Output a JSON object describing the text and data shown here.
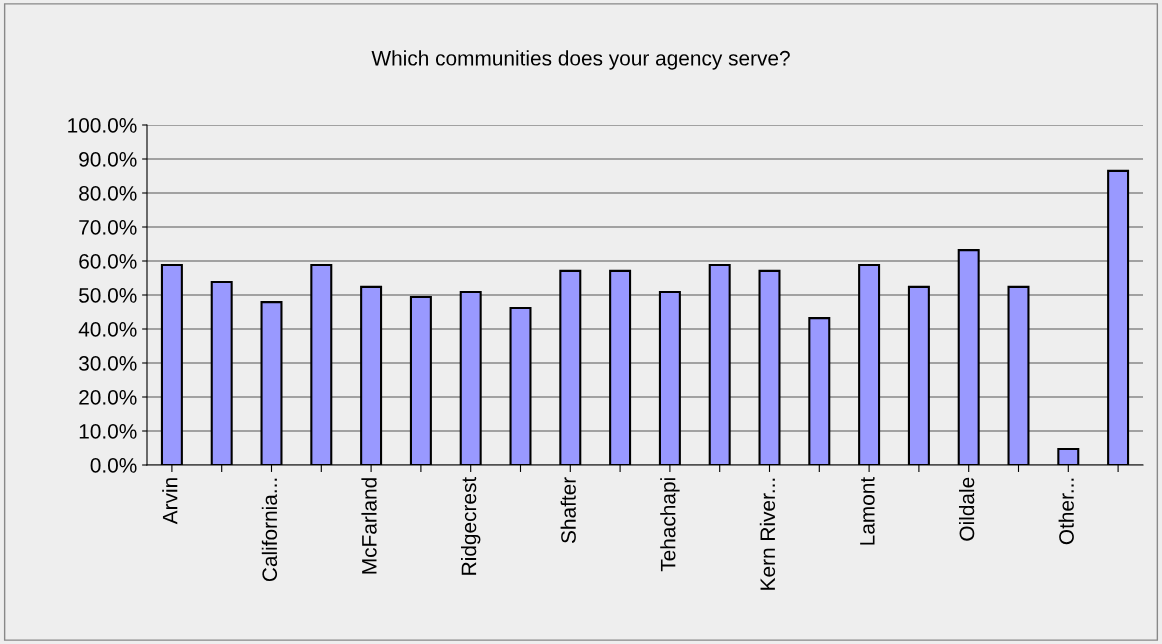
{
  "chart_data": {
    "type": "bar",
    "title": "Which communities does your agency serve?",
    "categories": [
      "Arvin",
      null,
      "California...",
      null,
      "McFarland",
      null,
      "Ridgecrest",
      null,
      "Shafter",
      null,
      "Tehachapi",
      null,
      "Kern River...",
      null,
      "Lamont",
      null,
      "Oildale",
      null,
      "Other...",
      null
    ],
    "values": [
      58.8,
      53.8,
      47.9,
      58.8,
      52.4,
      49.4,
      50.9,
      46.2,
      57.1,
      57.1,
      50.9,
      58.8,
      57.1,
      43.2,
      58.8,
      52.4,
      63.2,
      52.4,
      4.7,
      86.5
    ],
    "color": "#9999ff",
    "ylim": [
      0,
      100
    ],
    "yticks": [
      {
        "value": 0,
        "label": "0.0%"
      },
      {
        "value": 10,
        "label": "10.0%"
      },
      {
        "value": 20,
        "label": "20.0%"
      },
      {
        "value": 30,
        "label": "30.0%"
      },
      {
        "value": 40,
        "label": "40.0%"
      },
      {
        "value": 50,
        "label": "50.0%"
      },
      {
        "value": 60,
        "label": "60.0%"
      },
      {
        "value": 70,
        "label": "70.0%"
      },
      {
        "value": 80,
        "label": "80.0%"
      },
      {
        "value": 90,
        "label": "90.0%"
      },
      {
        "value": 100,
        "label": "100.0%"
      }
    ],
    "grid": "y",
    "legend": false
  }
}
